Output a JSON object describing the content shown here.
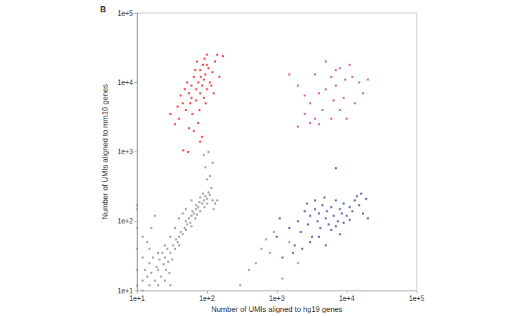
{
  "chart_data": {
    "type": "scatter",
    "title": "B",
    "x_label": "Number of UMIs aligned to hg19 genes",
    "y_label": "Number of UMIs aligned to mm10 genes",
    "log": true,
    "grid": false,
    "xlim": [
      10,
      100000
    ],
    "ylim": [
      10,
      100000
    ],
    "xticks": [
      {
        "value": 10,
        "label": "1e+1"
      },
      {
        "value": 100,
        "label": "1e+2"
      },
      {
        "value": 1000,
        "label": "1e+3"
      },
      {
        "value": 10000,
        "label": "1e+4"
      },
      {
        "value": 100000,
        "label": "1e+5"
      }
    ],
    "yticks": [
      {
        "value": 10,
        "label": "1e+1"
      },
      {
        "value": 100,
        "label": "1e+2"
      },
      {
        "value": 1000,
        "label": "1e+3"
      },
      {
        "value": 10000,
        "label": "1e+4"
      },
      {
        "value": 100000,
        "label": "1e+5"
      }
    ],
    "series": [
      {
        "color": "#8c8c8c",
        "values": [
          [
            10,
            12
          ],
          [
            10,
            20
          ],
          [
            10,
            40
          ],
          [
            10,
            80
          ],
          [
            10,
            150
          ],
          [
            10,
            170
          ],
          [
            12,
            10
          ],
          [
            12,
            14
          ],
          [
            13,
            20
          ],
          [
            14,
            16
          ],
          [
            15,
            12
          ],
          [
            15,
            25
          ],
          [
            16,
            18
          ],
          [
            17,
            30
          ],
          [
            18,
            14
          ],
          [
            19,
            22
          ],
          [
            20,
            12
          ],
          [
            20,
            20
          ],
          [
            21,
            28
          ],
          [
            22,
            16
          ],
          [
            23,
            35
          ],
          [
            24,
            24
          ],
          [
            25,
            14
          ],
          [
            25,
            30
          ],
          [
            26,
            20
          ],
          [
            27,
            40
          ],
          [
            28,
            26
          ],
          [
            29,
            18
          ],
          [
            30,
            12
          ],
          [
            30,
            35
          ],
          [
            32,
            28
          ],
          [
            33,
            45
          ],
          [
            35,
            40
          ],
          [
            36,
            55
          ],
          [
            38,
            50
          ],
          [
            40,
            60
          ],
          [
            40,
            45
          ],
          [
            42,
            70
          ],
          [
            45,
            65
          ],
          [
            48,
            80
          ],
          [
            50,
            75
          ],
          [
            50,
            100
          ],
          [
            52,
            90
          ],
          [
            55,
            110
          ],
          [
            58,
            95
          ],
          [
            60,
            120
          ],
          [
            60,
            85
          ],
          [
            62,
            140
          ],
          [
            65,
            130
          ],
          [
            68,
            110
          ],
          [
            70,
            150
          ],
          [
            70,
            170
          ],
          [
            72,
            125
          ],
          [
            75,
            160
          ],
          [
            78,
            190
          ],
          [
            80,
            140
          ],
          [
            80,
            220
          ],
          [
            85,
            180
          ],
          [
            88,
            250
          ],
          [
            90,
            200
          ],
          [
            92,
            160
          ],
          [
            95,
            230
          ],
          [
            100,
            210
          ],
          [
            100,
            180
          ],
          [
            105,
            260
          ],
          [
            110,
            240
          ],
          [
            115,
            300
          ],
          [
            120,
            200
          ],
          [
            60,
            200
          ],
          [
            50,
            150
          ],
          [
            45,
            130
          ],
          [
            40,
            110
          ],
          [
            35,
            80
          ],
          [
            30,
            60
          ],
          [
            25,
            45
          ],
          [
            20,
            35
          ],
          [
            15,
            40
          ],
          [
            12,
            60
          ],
          [
            100,
            400
          ],
          [
            95,
            600
          ],
          [
            105,
            1000
          ],
          [
            110,
            450
          ],
          [
            120,
            700
          ],
          [
            90,
            900
          ],
          [
            125,
            150
          ],
          [
            130,
            180
          ],
          [
            140,
            200
          ],
          [
            300,
            12
          ],
          [
            400,
            20
          ],
          [
            500,
            25
          ],
          [
            600,
            40
          ],
          [
            700,
            55
          ],
          [
            800,
            35
          ],
          [
            900,
            70
          ],
          [
            1200,
            15
          ],
          [
            1500,
            50
          ],
          [
            2000,
            25
          ],
          [
            12,
            30
          ],
          [
            14,
            50
          ],
          [
            16,
            80
          ],
          [
            18,
            120
          ]
        ]
      },
      {
        "color": "#e3231f",
        "values": [
          [
            40,
            3000
          ],
          [
            45,
            5000
          ],
          [
            50,
            4000
          ],
          [
            55,
            7000
          ],
          [
            60,
            6000
          ],
          [
            60,
            9000
          ],
          [
            65,
            12000
          ],
          [
            70,
            8000
          ],
          [
            70,
            5500
          ],
          [
            75,
            10000
          ],
          [
            80,
            7000
          ],
          [
            80,
            15000
          ],
          [
            85,
            9000
          ],
          [
            90,
            11000
          ],
          [
            90,
            6000
          ],
          [
            95,
            13000
          ],
          [
            100,
            8000
          ],
          [
            100,
            18000
          ],
          [
            110,
            10000
          ],
          [
            120,
            14000
          ],
          [
            130,
            20000
          ],
          [
            140,
            25000
          ],
          [
            150,
            12000
          ],
          [
            35,
            2500
          ],
          [
            30,
            3500
          ],
          [
            38,
            4500
          ],
          [
            42,
            6500
          ],
          [
            48,
            8000
          ],
          [
            52,
            10000
          ],
          [
            58,
            5000
          ],
          [
            62,
            3500
          ],
          [
            68,
            15000
          ],
          [
            72,
            20000
          ],
          [
            78,
            4000
          ],
          [
            82,
            12000
          ],
          [
            88,
            18000
          ],
          [
            92,
            22000
          ],
          [
            96,
            5000
          ],
          [
            105,
            16000
          ],
          [
            115,
            9000
          ],
          [
            125,
            7000
          ],
          [
            65,
            2000
          ],
          [
            55,
            2200
          ],
          [
            75,
            2600
          ],
          [
            46,
            1050
          ],
          [
            54,
            1000
          ],
          [
            80,
            1400
          ],
          [
            85,
            1650
          ],
          [
            100,
            25000
          ],
          [
            170,
            24000
          ]
        ]
      },
      {
        "color": "#2f4b9a",
        "values": [
          [
            1000,
            60
          ],
          [
            1200,
            30
          ],
          [
            1500,
            80
          ],
          [
            1800,
            45
          ],
          [
            2000,
            100
          ],
          [
            2200,
            70
          ],
          [
            2500,
            140
          ],
          [
            2800,
            90
          ],
          [
            3000,
            120
          ],
          [
            3200,
            60
          ],
          [
            3500,
            150
          ],
          [
            3800,
            100
          ],
          [
            4000,
            130
          ],
          [
            4200,
            80
          ],
          [
            4500,
            170
          ],
          [
            5000,
            110
          ],
          [
            5200,
            140
          ],
          [
            5500,
            90
          ],
          [
            6000,
            160
          ],
          [
            6500,
            120
          ],
          [
            7000,
            200
          ],
          [
            7000,
            580
          ],
          [
            7500,
            100
          ],
          [
            8000,
            150
          ],
          [
            8500,
            130
          ],
          [
            9000,
            180
          ],
          [
            10000,
            120
          ],
          [
            11000,
            160
          ],
          [
            12000,
            140
          ],
          [
            13000,
            200
          ],
          [
            15000,
            170
          ],
          [
            17000,
            130
          ],
          [
            20000,
            110
          ],
          [
            2300,
            40
          ],
          [
            3000,
            50
          ],
          [
            4000,
            60
          ],
          [
            5000,
            45
          ],
          [
            6000,
            75
          ],
          [
            7000,
            85
          ],
          [
            9000,
            95
          ],
          [
            11000,
            105
          ],
          [
            14000,
            230
          ],
          [
            16000,
            250
          ],
          [
            3500,
            200
          ],
          [
            2700,
            180
          ],
          [
            4800,
            220
          ],
          [
            1700,
            35
          ],
          [
            1100,
            110
          ],
          [
            19000,
            210
          ],
          [
            8000,
            65
          ]
        ]
      },
      {
        "color": "#c2409f",
        "values": [
          [
            1500,
            13000
          ],
          [
            2000,
            2300
          ],
          [
            2000,
            9000
          ],
          [
            2500,
            3500
          ],
          [
            3000,
            2600
          ],
          [
            3000,
            5000
          ],
          [
            3500,
            3000
          ],
          [
            3500,
            13000
          ],
          [
            4000,
            7000
          ],
          [
            4500,
            4000
          ],
          [
            5000,
            20000
          ],
          [
            5000,
            8000
          ],
          [
            6000,
            12000
          ],
          [
            6500,
            5500
          ],
          [
            7000,
            15000
          ],
          [
            7000,
            9000
          ],
          [
            8000,
            16000
          ],
          [
            8000,
            4000
          ],
          [
            9000,
            6000
          ],
          [
            10000,
            3000
          ],
          [
            11000,
            18000
          ],
          [
            12000,
            12000
          ],
          [
            13000,
            5000
          ],
          [
            15000,
            10000
          ],
          [
            17000,
            7000
          ],
          [
            20000,
            11000
          ],
          [
            2500,
            6500
          ],
          [
            4000,
            2500
          ],
          [
            6000,
            3000
          ],
          [
            9500,
            11000
          ]
        ]
      }
    ]
  }
}
